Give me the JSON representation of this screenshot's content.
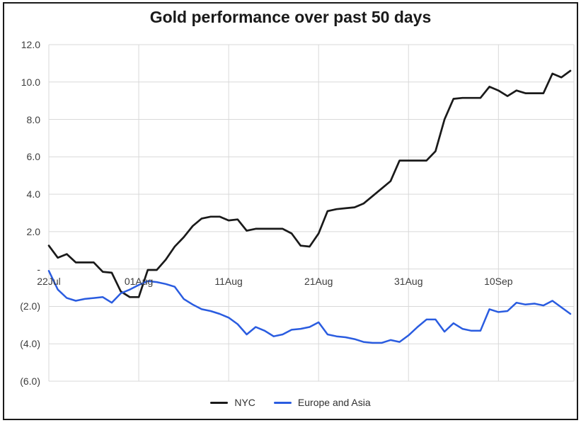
{
  "window": {
    "background": "#ffffff",
    "frame_border_color": "#1a1a1a"
  },
  "chart_data": {
    "type": "line",
    "title": "Gold performance over past 50 days",
    "xlabel": "",
    "ylabel": "",
    "grid": true,
    "gridline_color": "#d9d9d9",
    "legend_position": "bottom",
    "x_axis": {
      "n_points": 59,
      "tick_indices": [
        0,
        10,
        20,
        30,
        40,
        50
      ],
      "tick_labels": [
        "22Jul",
        "01Aug",
        "11Aug",
        "21Aug",
        "31Aug",
        "10Sep"
      ]
    },
    "y_axis": {
      "min": -6,
      "max": 12,
      "tick_values": [
        12,
        10,
        8,
        6,
        4,
        2,
        0,
        -2,
        -4,
        -6
      ],
      "tick_labels": [
        "12.0",
        "10.0",
        "8.0",
        "6.0",
        "4.0",
        "2.0",
        "-",
        "(2.0)",
        "(4.0)",
        "(6.0)"
      ]
    },
    "series": [
      {
        "name": "NYC",
        "color": "#1a1a1a",
        "stroke_width": 2.7,
        "values": [
          1.25,
          0.6,
          0.8,
          0.35,
          0.35,
          0.35,
          -0.15,
          -0.2,
          -1.2,
          -1.5,
          -1.5,
          -0.05,
          -0.05,
          0.5,
          1.2,
          1.7,
          2.3,
          2.7,
          2.8,
          2.8,
          2.6,
          2.65,
          2.05,
          2.15,
          2.15,
          2.15,
          2.15,
          1.9,
          1.25,
          1.2,
          1.9,
          3.1,
          3.2,
          3.25,
          3.3,
          3.5,
          3.9,
          4.3,
          4.7,
          5.8,
          5.8,
          5.8,
          5.8,
          6.3,
          8.0,
          9.1,
          9.15,
          9.15,
          9.15,
          9.75,
          9.55,
          9.25,
          9.55,
          9.4,
          9.4,
          9.4,
          10.45,
          10.25,
          10.6
        ]
      },
      {
        "name": "Europe and Asia",
        "color": "#2a5ce0",
        "stroke_width": 2.5,
        "values": [
          -0.1,
          -1.1,
          -1.55,
          -1.7,
          -1.6,
          -1.55,
          -1.5,
          -1.8,
          -1.3,
          -1.1,
          -0.85,
          -0.65,
          -0.7,
          -0.8,
          -0.95,
          -1.6,
          -1.9,
          -2.15,
          -2.25,
          -2.4,
          -2.6,
          -2.95,
          -3.5,
          -3.1,
          -3.3,
          -3.6,
          -3.5,
          -3.25,
          -3.2,
          -3.1,
          -2.85,
          -3.5,
          -3.6,
          -3.65,
          -3.75,
          -3.9,
          -3.95,
          -3.95,
          -3.8,
          -3.9,
          -3.55,
          -3.1,
          -2.7,
          -2.7,
          -3.35,
          -2.9,
          -3.2,
          -3.3,
          -3.3,
          -2.15,
          -2.3,
          -2.25,
          -1.8,
          -1.9,
          -1.85,
          -1.95,
          -1.7,
          -2.05,
          -2.4
        ]
      }
    ]
  }
}
